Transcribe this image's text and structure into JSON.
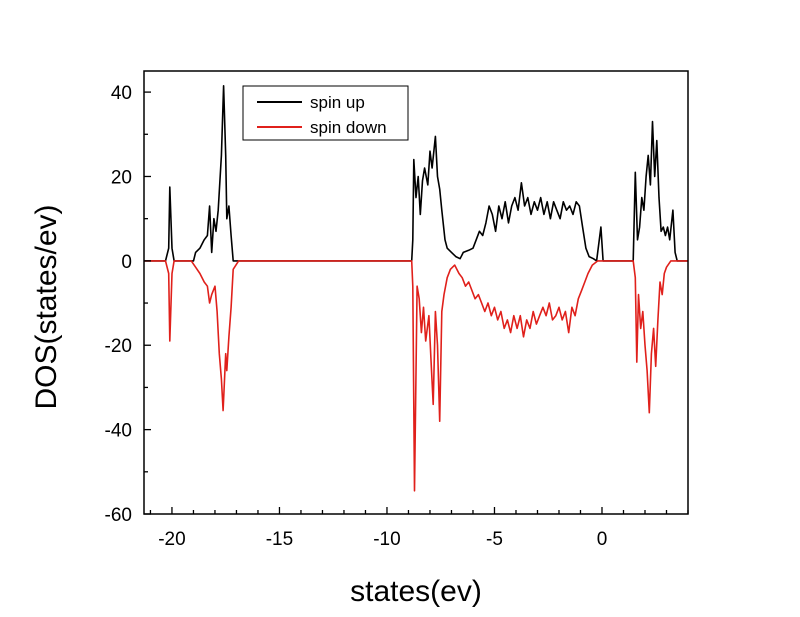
{
  "chart_data": {
    "type": "line",
    "title": "",
    "xlabel": "states(ev)",
    "ylabel": "DOS(states/ev)",
    "xlim": [
      -21.3,
      4.0
    ],
    "ylim": [
      -60,
      45
    ],
    "xticks": [
      -20,
      -15,
      -10,
      -5,
      0
    ],
    "yticks": [
      -60,
      -40,
      -20,
      0,
      20,
      40
    ],
    "grid": false,
    "legend_position": "top-left",
    "series": [
      {
        "name": "spin up",
        "color": "#000000",
        "points": [
          [
            -21.3,
            0
          ],
          [
            -20.3,
            0
          ],
          [
            -20.15,
            3
          ],
          [
            -20.1,
            17.5
          ],
          [
            -20.0,
            3
          ],
          [
            -19.9,
            0
          ],
          [
            -19.0,
            0
          ],
          [
            -18.9,
            2
          ],
          [
            -18.7,
            3
          ],
          [
            -18.5,
            5
          ],
          [
            -18.35,
            6
          ],
          [
            -18.25,
            13
          ],
          [
            -18.15,
            2
          ],
          [
            -18.05,
            10
          ],
          [
            -17.95,
            7
          ],
          [
            -17.85,
            12
          ],
          [
            -17.7,
            25
          ],
          [
            -17.6,
            41.5
          ],
          [
            -17.5,
            25
          ],
          [
            -17.45,
            10
          ],
          [
            -17.35,
            13
          ],
          [
            -17.25,
            6
          ],
          [
            -17.15,
            0
          ],
          [
            -16.9,
            0
          ],
          [
            -8.85,
            0
          ],
          [
            -8.8,
            5
          ],
          [
            -8.75,
            24
          ],
          [
            -8.65,
            15
          ],
          [
            -8.55,
            20
          ],
          [
            -8.45,
            11
          ],
          [
            -8.35,
            19
          ],
          [
            -8.25,
            22
          ],
          [
            -8.1,
            18
          ],
          [
            -8.0,
            26
          ],
          [
            -7.9,
            22
          ],
          [
            -7.75,
            29.5
          ],
          [
            -7.65,
            20
          ],
          [
            -7.55,
            17
          ],
          [
            -7.45,
            12
          ],
          [
            -7.3,
            5
          ],
          [
            -7.2,
            3
          ],
          [
            -7.0,
            2
          ],
          [
            -6.8,
            1
          ],
          [
            -6.6,
            0.5
          ],
          [
            -6.45,
            2
          ],
          [
            -6.2,
            2.5
          ],
          [
            -6.0,
            3
          ],
          [
            -5.85,
            5
          ],
          [
            -5.7,
            7
          ],
          [
            -5.55,
            6
          ],
          [
            -5.4,
            9
          ],
          [
            -5.25,
            13
          ],
          [
            -5.1,
            11
          ],
          [
            -4.95,
            7
          ],
          [
            -4.8,
            13
          ],
          [
            -4.65,
            10
          ],
          [
            -4.5,
            14
          ],
          [
            -4.35,
            9
          ],
          [
            -4.2,
            13
          ],
          [
            -4.05,
            15
          ],
          [
            -3.9,
            12
          ],
          [
            -3.75,
            18.5
          ],
          [
            -3.6,
            13
          ],
          [
            -3.45,
            15
          ],
          [
            -3.3,
            11
          ],
          [
            -3.15,
            14
          ],
          [
            -3.0,
            12
          ],
          [
            -2.85,
            15
          ],
          [
            -2.7,
            11
          ],
          [
            -2.55,
            14
          ],
          [
            -2.4,
            10
          ],
          [
            -2.25,
            14
          ],
          [
            -2.1,
            12
          ],
          [
            -1.95,
            10
          ],
          [
            -1.8,
            14
          ],
          [
            -1.65,
            12
          ],
          [
            -1.5,
            13
          ],
          [
            -1.35,
            11
          ],
          [
            -1.2,
            14
          ],
          [
            -1.05,
            13
          ],
          [
            -0.9,
            8
          ],
          [
            -0.75,
            3
          ],
          [
            -0.6,
            1
          ],
          [
            -0.4,
            0.5
          ],
          [
            -0.25,
            0
          ],
          [
            -0.05,
            8
          ],
          [
            0.05,
            0
          ],
          [
            1.0,
            0
          ],
          [
            1.45,
            0
          ],
          [
            1.55,
            21
          ],
          [
            1.65,
            5
          ],
          [
            1.75,
            8
          ],
          [
            1.85,
            15
          ],
          [
            1.95,
            12
          ],
          [
            2.05,
            20
          ],
          [
            2.15,
            25
          ],
          [
            2.25,
            18
          ],
          [
            2.35,
            33
          ],
          [
            2.45,
            20
          ],
          [
            2.55,
            28.5
          ],
          [
            2.65,
            15
          ],
          [
            2.75,
            7
          ],
          [
            2.85,
            8
          ],
          [
            2.95,
            6
          ],
          [
            3.05,
            8
          ],
          [
            3.15,
            5
          ],
          [
            3.3,
            12
          ],
          [
            3.4,
            2
          ],
          [
            3.5,
            0
          ],
          [
            4.0,
            0
          ]
        ]
      },
      {
        "name": "spin down",
        "color": "#e0201b",
        "points": [
          [
            -21.3,
            0
          ],
          [
            -20.3,
            0
          ],
          [
            -20.15,
            -3
          ],
          [
            -20.1,
            -19
          ],
          [
            -20.0,
            -3
          ],
          [
            -19.9,
            0
          ],
          [
            -19.1,
            0
          ],
          [
            -18.9,
            -1.5
          ],
          [
            -18.7,
            -3
          ],
          [
            -18.5,
            -5
          ],
          [
            -18.35,
            -6
          ],
          [
            -18.25,
            -10
          ],
          [
            -18.15,
            -8
          ],
          [
            -18.0,
            -6
          ],
          [
            -17.9,
            -12
          ],
          [
            -17.8,
            -22
          ],
          [
            -17.7,
            -28
          ],
          [
            -17.62,
            -35.5
          ],
          [
            -17.5,
            -22
          ],
          [
            -17.45,
            -26
          ],
          [
            -17.35,
            -18
          ],
          [
            -17.25,
            -11
          ],
          [
            -17.15,
            -2
          ],
          [
            -16.9,
            0
          ],
          [
            -8.85,
            0
          ],
          [
            -8.8,
            -6
          ],
          [
            -8.72,
            -54.5
          ],
          [
            -8.6,
            -6
          ],
          [
            -8.5,
            -9
          ],
          [
            -8.4,
            -17
          ],
          [
            -8.3,
            -11
          ],
          [
            -8.2,
            -19
          ],
          [
            -8.05,
            -13
          ],
          [
            -7.95,
            -24
          ],
          [
            -7.85,
            -34
          ],
          [
            -7.75,
            -12
          ],
          [
            -7.65,
            -20
          ],
          [
            -7.55,
            -38
          ],
          [
            -7.45,
            -12
          ],
          [
            -7.35,
            -8
          ],
          [
            -7.2,
            -4
          ],
          [
            -7.05,
            -2
          ],
          [
            -6.85,
            -1
          ],
          [
            -6.65,
            -3
          ],
          [
            -6.5,
            -4
          ],
          [
            -6.35,
            -6
          ],
          [
            -6.2,
            -5
          ],
          [
            -6.05,
            -7
          ],
          [
            -5.9,
            -9
          ],
          [
            -5.75,
            -8
          ],
          [
            -5.6,
            -10
          ],
          [
            -5.45,
            -12
          ],
          [
            -5.3,
            -10
          ],
          [
            -5.15,
            -13
          ],
          [
            -5.0,
            -11
          ],
          [
            -4.85,
            -14
          ],
          [
            -4.7,
            -12
          ],
          [
            -4.55,
            -16
          ],
          [
            -4.4,
            -14
          ],
          [
            -4.25,
            -17
          ],
          [
            -4.1,
            -13
          ],
          [
            -3.95,
            -16
          ],
          [
            -3.8,
            -13
          ],
          [
            -3.65,
            -18
          ],
          [
            -3.5,
            -14
          ],
          [
            -3.35,
            -16
          ],
          [
            -3.2,
            -12
          ],
          [
            -3.05,
            -15
          ],
          [
            -2.9,
            -13
          ],
          [
            -2.75,
            -11
          ],
          [
            -2.6,
            -13
          ],
          [
            -2.45,
            -10
          ],
          [
            -2.3,
            -14
          ],
          [
            -2.15,
            -13
          ],
          [
            -2.0,
            -11
          ],
          [
            -1.85,
            -14
          ],
          [
            -1.7,
            -12
          ],
          [
            -1.55,
            -17
          ],
          [
            -1.4,
            -11
          ],
          [
            -1.25,
            -13
          ],
          [
            -1.1,
            -9
          ],
          [
            -0.95,
            -7
          ],
          [
            -0.8,
            -5
          ],
          [
            -0.65,
            -3
          ],
          [
            -0.45,
            -1
          ],
          [
            -0.2,
            0
          ],
          [
            1.0,
            0
          ],
          [
            1.45,
            0
          ],
          [
            1.55,
            -4
          ],
          [
            1.62,
            -24
          ],
          [
            1.7,
            -8
          ],
          [
            1.8,
            -16
          ],
          [
            1.9,
            -12
          ],
          [
            2.0,
            -20
          ],
          [
            2.1,
            -26
          ],
          [
            2.2,
            -36
          ],
          [
            2.3,
            -22
          ],
          [
            2.4,
            -16
          ],
          [
            2.5,
            -25
          ],
          [
            2.6,
            -14
          ],
          [
            2.7,
            -5
          ],
          [
            2.8,
            -8
          ],
          [
            2.9,
            -3
          ],
          [
            3.0,
            -1.5
          ],
          [
            3.2,
            0
          ],
          [
            4.0,
            0
          ]
        ]
      }
    ]
  }
}
